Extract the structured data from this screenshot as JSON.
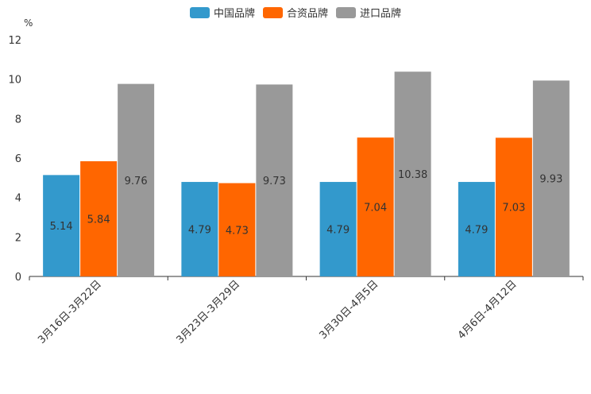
{
  "chart_data": {
    "type": "bar",
    "title": "",
    "xlabel": "",
    "ylabel": "%",
    "ylim": [
      0,
      12
    ],
    "yticks": [
      0,
      2,
      4,
      6,
      8,
      10,
      12
    ],
    "legend_position": "top-center",
    "grid": false,
    "categories": [
      "3月16日-3月22日",
      "3月23日-3月29日",
      "3月30日-4月5日",
      "4月6日-4月12日"
    ],
    "series": [
      {
        "name": "中国品牌",
        "color": "#3399cc",
        "values": [
          5.14,
          4.79,
          4.79,
          4.79
        ]
      },
      {
        "name": "合资品牌",
        "color": "#ff6600",
        "values": [
          5.84,
          4.73,
          7.04,
          7.03
        ]
      },
      {
        "name": "进口品牌",
        "color": "#999999",
        "values": [
          9.76,
          9.73,
          10.38,
          9.93
        ]
      }
    ]
  }
}
